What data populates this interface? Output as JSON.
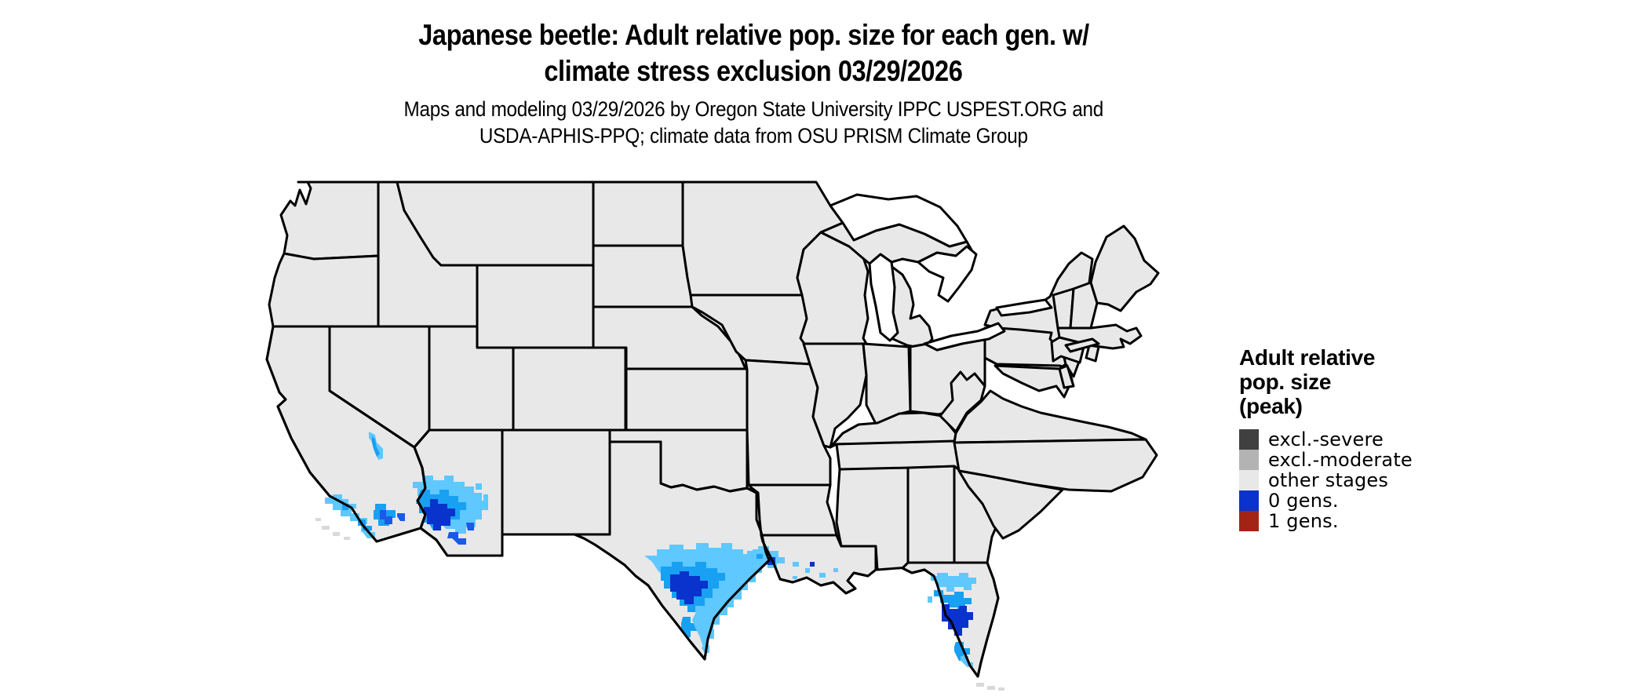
{
  "title": {
    "line1": "Japanese beetle: Adult relative pop. size for each gen. w/",
    "line2": "climate stress exclusion 03/29/2026"
  },
  "subtitle": {
    "line1": "Maps and modeling 03/29/2026 by Oregon State University IPPC USPEST.ORG and",
    "line2": "USDA-APHIS-PPQ; climate data from OSU PRISM Climate Group"
  },
  "legend": {
    "title_lines": [
      "Adult relative",
      "pop. size",
      "(peak)"
    ],
    "items": [
      {
        "label": "excl.-severe",
        "color": "#404040"
      },
      {
        "label": "excl.-moderate",
        "color": "#b3b3b3"
      },
      {
        "label": "other stages",
        "color": "#e8e8e8"
      },
      {
        "label": "0 gens.",
        "color": "#0a32cc"
      },
      {
        "label": "1 gens.",
        "color": "#a32314"
      }
    ]
  },
  "map": {
    "region": "contiguous United States",
    "background": "#ffffff",
    "land_fill": "#e8e8e8",
    "border_color": "#000000",
    "water_fill": "#ffffff",
    "population_shades": {
      "low": "#5ec8ff",
      "medium": "#18a0f2",
      "high": "#1b59e8",
      "peak": "#0a32cc"
    },
    "regions_with_adult_population": [
      "coastal southern California",
      "southwestern Arizona",
      "southern Nevada border strip",
      "southern Texas gulf coast",
      "upper Texas coast near Houston",
      "coastal Louisiana",
      "central and southern Florida"
    ]
  }
}
